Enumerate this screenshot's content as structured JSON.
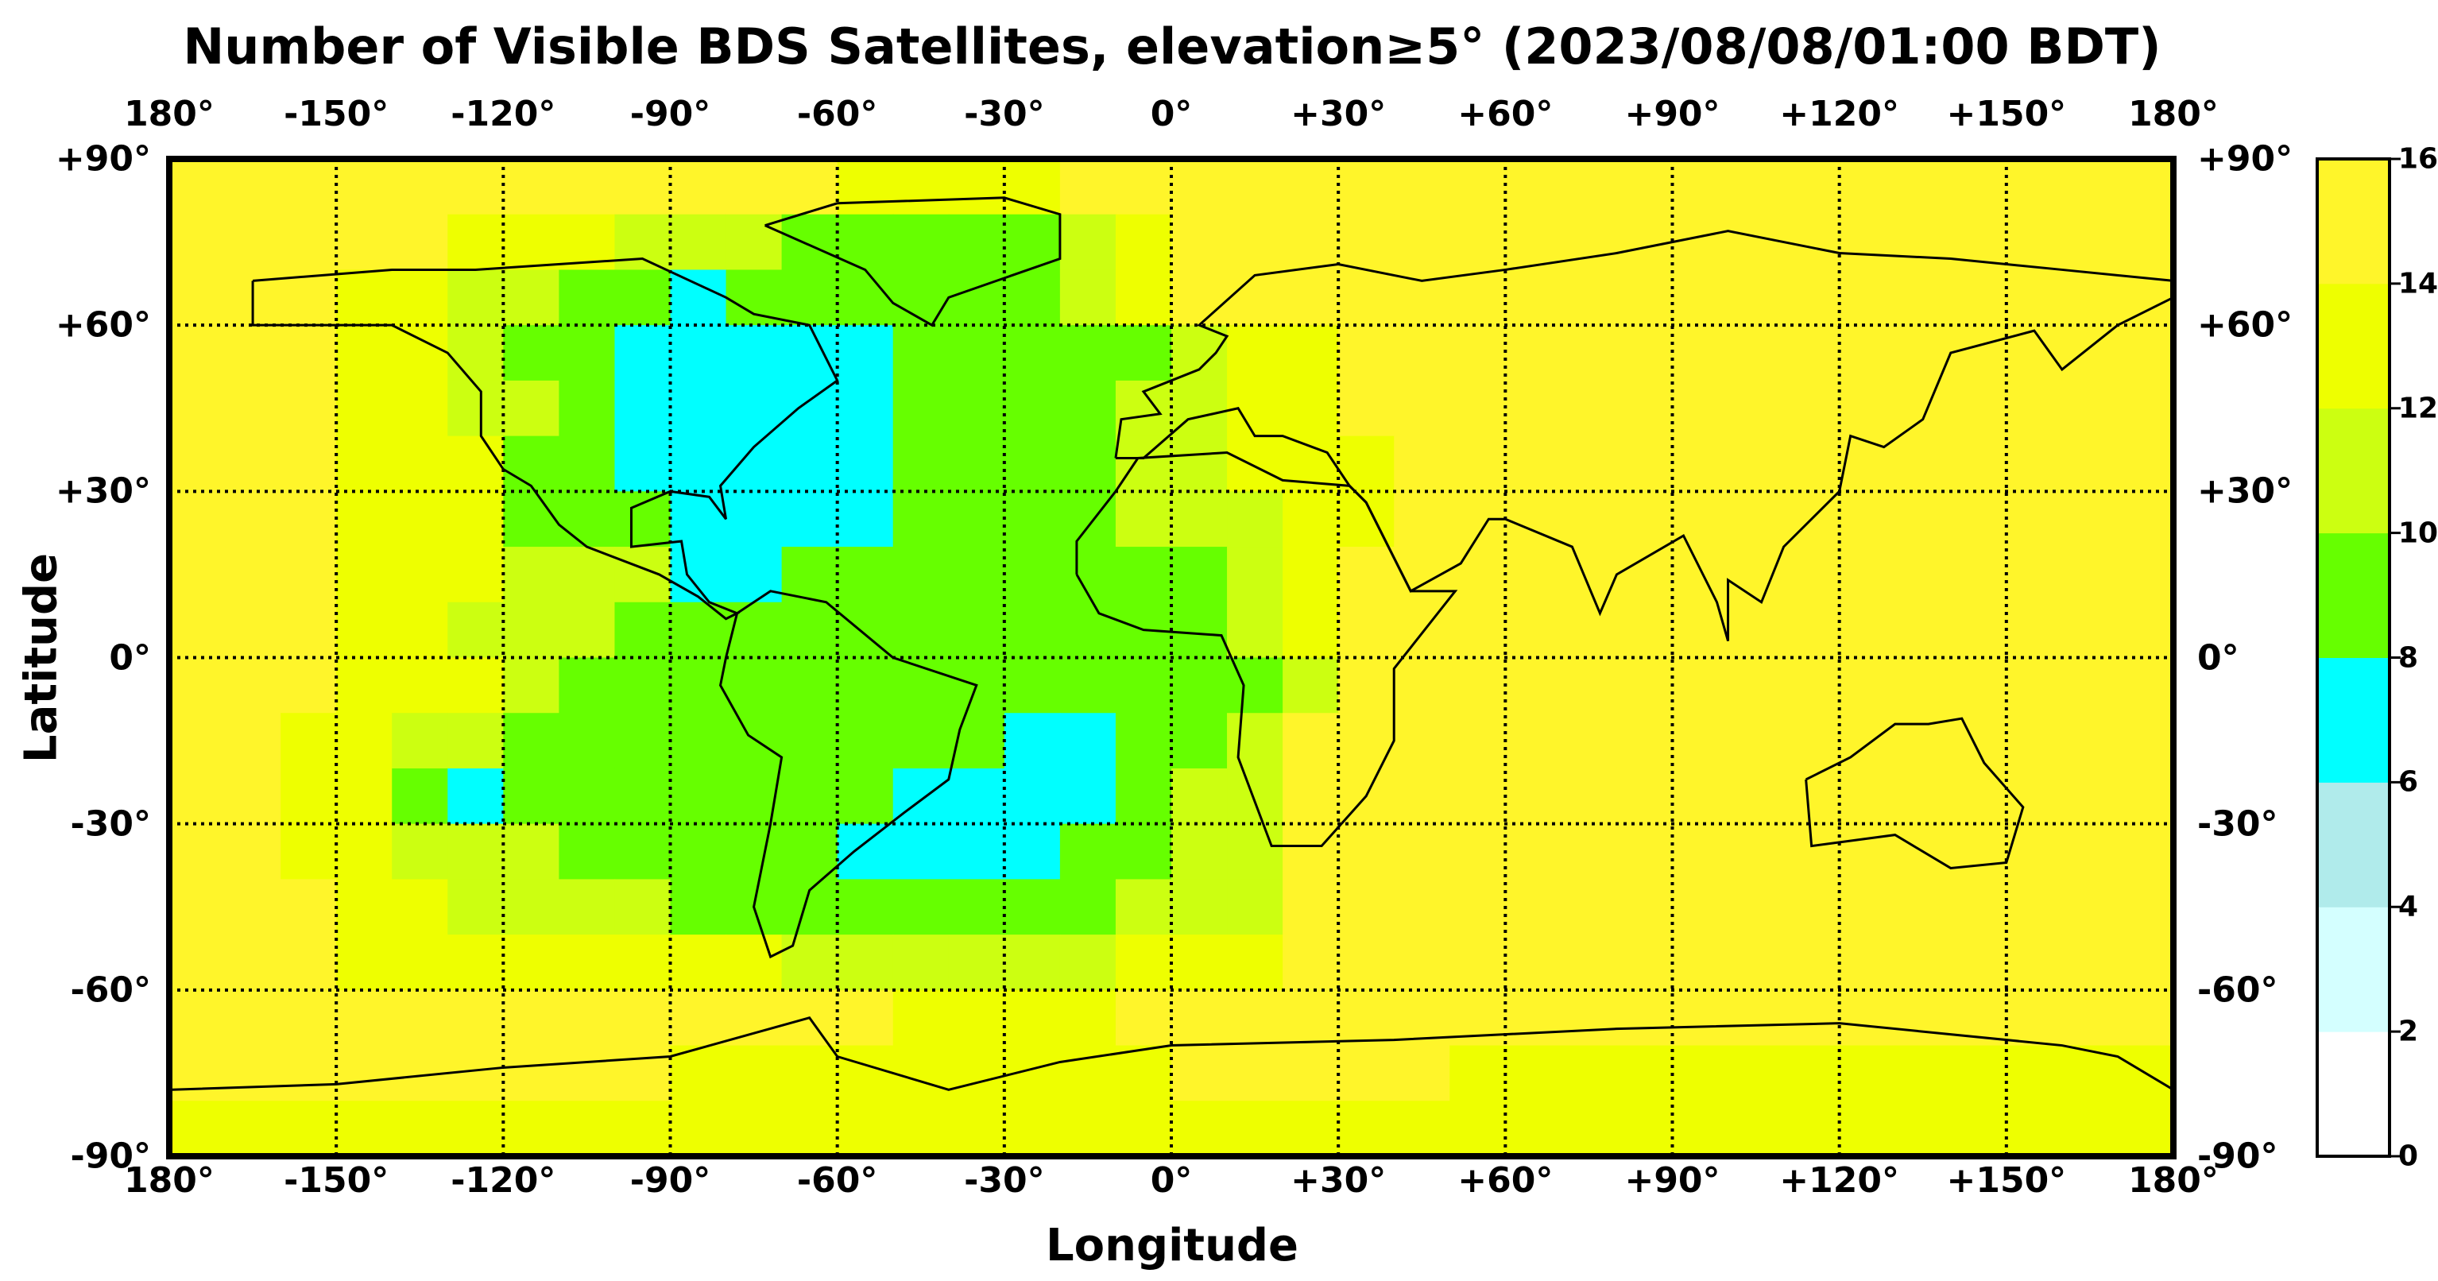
{
  "chart_data": {
    "type": "heatmap",
    "title": "Number of Visible BDS Satellites, elevation≥5° (2023/08/08/01:00 BDT)",
    "xlabel": "Longitude",
    "ylabel": "Latitude",
    "xlim": [
      -180,
      180
    ],
    "ylim": [
      -90,
      90
    ],
    "grid": true,
    "x_ticks": [
      "180°",
      "-150°",
      "-120°",
      "-90°",
      "-60°",
      "-30°",
      "0°",
      "+30°",
      "+60°",
      "+90°",
      "+120°",
      "+150°",
      "180°"
    ],
    "y_ticks": [
      "+90°",
      "+60°",
      "+30°",
      "0°",
      "-30°",
      "-60°",
      "-90°"
    ],
    "colorbar": {
      "ticks": [
        "16",
        "14",
        "12",
        "10",
        "8",
        "6",
        "4",
        "2",
        "0"
      ],
      "bins": [
        {
          "range": [
            0,
            2
          ],
          "color": "#ffffff"
        },
        {
          "range": [
            2,
            4
          ],
          "color": "#d4ffff"
        },
        {
          "range": [
            4,
            6
          ],
          "color": "#b0ebeb"
        },
        {
          "range": [
            6,
            8
          ],
          "color": "#00ffff"
        },
        {
          "range": [
            8,
            10
          ],
          "color": "#66ff00"
        },
        {
          "range": [
            10,
            12
          ],
          "color": "#ccff11"
        },
        {
          "range": [
            12,
            14
          ],
          "color": "#eeff00"
        },
        {
          "range": [
            14,
            16
          ],
          "color": "#fff52a"
        }
      ],
      "placement": "right"
    },
    "grid_resolution_deg": 10,
    "grid_lat_centers": [
      85,
      75,
      65,
      55,
      45,
      35,
      25,
      15,
      5,
      -5,
      -15,
      -25,
      -35,
      -45,
      -55,
      -65,
      -75,
      -85
    ],
    "grid_lon_centers_start": -175,
    "values": [
      [
        15,
        15,
        15,
        15,
        15,
        15,
        15,
        15,
        15,
        15,
        15,
        15,
        13,
        13,
        13,
        13,
        15,
        15,
        15,
        15,
        15,
        15,
        15,
        15,
        15,
        15,
        15,
        15,
        15,
        15,
        15,
        15,
        15,
        15,
        15,
        15
      ],
      [
        15,
        15,
        15,
        15,
        15,
        13,
        13,
        13,
        11,
        11,
        11,
        9,
        9,
        9,
        9,
        9,
        11,
        13,
        15,
        15,
        15,
        15,
        15,
        15,
        15,
        15,
        15,
        15,
        15,
        15,
        15,
        15,
        15,
        15,
        15,
        15
      ],
      [
        15,
        15,
        15,
        13,
        13,
        11,
        11,
        9,
        9,
        7,
        9,
        9,
        9,
        9,
        9,
        9,
        11,
        13,
        15,
        15,
        15,
        15,
        15,
        15,
        15,
        15,
        15,
        15,
        15,
        15,
        15,
        15,
        15,
        15,
        15,
        15
      ],
      [
        15,
        15,
        15,
        13,
        13,
        11,
        9,
        9,
        7,
        7,
        7,
        7,
        7,
        9,
        9,
        9,
        9,
        9,
        11,
        13,
        13,
        15,
        15,
        15,
        15,
        15,
        15,
        15,
        15,
        15,
        15,
        15,
        15,
        15,
        15,
        15
      ],
      [
        15,
        15,
        15,
        13,
        13,
        11,
        11,
        9,
        7,
        7,
        7,
        7,
        7,
        9,
        9,
        9,
        9,
        11,
        11,
        13,
        13,
        15,
        15,
        15,
        15,
        15,
        15,
        15,
        15,
        15,
        15,
        15,
        15,
        15,
        15,
        15
      ],
      [
        15,
        15,
        15,
        13,
        13,
        13,
        9,
        9,
        7,
        7,
        7,
        7,
        7,
        9,
        9,
        9,
        9,
        11,
        11,
        13,
        13,
        13,
        15,
        15,
        15,
        15,
        15,
        15,
        15,
        15,
        15,
        15,
        15,
        15,
        15,
        15
      ],
      [
        15,
        15,
        15,
        13,
        13,
        13,
        9,
        9,
        9,
        7,
        7,
        7,
        7,
        9,
        9,
        9,
        9,
        11,
        11,
        11,
        13,
        13,
        15,
        15,
        15,
        15,
        15,
        15,
        15,
        15,
        15,
        15,
        15,
        15,
        15,
        15
      ],
      [
        15,
        15,
        15,
        13,
        13,
        13,
        11,
        11,
        11,
        7,
        7,
        9,
        9,
        9,
        9,
        9,
        9,
        9,
        9,
        11,
        13,
        15,
        15,
        15,
        15,
        15,
        15,
        15,
        15,
        15,
        15,
        15,
        15,
        15,
        15,
        15
      ],
      [
        15,
        15,
        15,
        13,
        13,
        11,
        11,
        11,
        9,
        9,
        9,
        9,
        9,
        9,
        9,
        9,
        9,
        9,
        9,
        11,
        13,
        15,
        15,
        15,
        15,
        15,
        15,
        15,
        15,
        15,
        15,
        15,
        15,
        15,
        15,
        15
      ],
      [
        15,
        15,
        15,
        13,
        13,
        13,
        11,
        9,
        9,
        9,
        9,
        9,
        9,
        9,
        9,
        9,
        9,
        9,
        9,
        9,
        11,
        15,
        15,
        15,
        15,
        15,
        15,
        15,
        15,
        15,
        15,
        15,
        15,
        15,
        15,
        15
      ],
      [
        15,
        15,
        13,
        13,
        11,
        11,
        9,
        9,
        9,
        9,
        9,
        9,
        9,
        9,
        9,
        7,
        7,
        9,
        9,
        11,
        15,
        15,
        15,
        15,
        15,
        15,
        15,
        15,
        15,
        15,
        15,
        15,
        15,
        15,
        15,
        15
      ],
      [
        15,
        15,
        13,
        13,
        9,
        7,
        9,
        9,
        9,
        9,
        9,
        9,
        9,
        7,
        7,
        7,
        7,
        9,
        11,
        11,
        15,
        15,
        15,
        15,
        15,
        15,
        15,
        15,
        15,
        15,
        15,
        15,
        15,
        15,
        15,
        15
      ],
      [
        15,
        15,
        13,
        13,
        11,
        11,
        11,
        9,
        9,
        9,
        9,
        9,
        7,
        7,
        7,
        7,
        9,
        9,
        11,
        11,
        15,
        15,
        15,
        15,
        15,
        15,
        15,
        15,
        15,
        15,
        15,
        15,
        15,
        15,
        15,
        15
      ],
      [
        15,
        15,
        15,
        13,
        13,
        11,
        11,
        11,
        11,
        9,
        9,
        9,
        9,
        9,
        9,
        9,
        9,
        11,
        11,
        11,
        15,
        15,
        15,
        15,
        15,
        15,
        15,
        15,
        15,
        15,
        15,
        15,
        15,
        15,
        15,
        15
      ],
      [
        15,
        15,
        15,
        13,
        13,
        13,
        13,
        13,
        13,
        13,
        13,
        11,
        11,
        11,
        11,
        11,
        11,
        13,
        13,
        13,
        15,
        15,
        15,
        15,
        15,
        15,
        15,
        15,
        15,
        15,
        15,
        15,
        15,
        15,
        15,
        15
      ],
      [
        15,
        15,
        15,
        15,
        15,
        15,
        15,
        15,
        15,
        15,
        15,
        15,
        15,
        13,
        13,
        13,
        13,
        15,
        15,
        15,
        15,
        15,
        15,
        15,
        15,
        15,
        15,
        15,
        15,
        15,
        15,
        15,
        15,
        15,
        15,
        15
      ],
      [
        15,
        15,
        15,
        15,
        15,
        15,
        15,
        15,
        15,
        13,
        13,
        13,
        13,
        13,
        13,
        13,
        13,
        13,
        15,
        15,
        15,
        15,
        15,
        13,
        13,
        13,
        13,
        13,
        13,
        13,
        13,
        13,
        13,
        13,
        13,
        13
      ],
      [
        13,
        13,
        13,
        13,
        13,
        13,
        13,
        13,
        13,
        13,
        13,
        13,
        13,
        13,
        13,
        13,
        13,
        13,
        13,
        13,
        13,
        13,
        13,
        13,
        13,
        13,
        13,
        13,
        13,
        13,
        13,
        13,
        13,
        13,
        13,
        13
      ]
    ]
  }
}
